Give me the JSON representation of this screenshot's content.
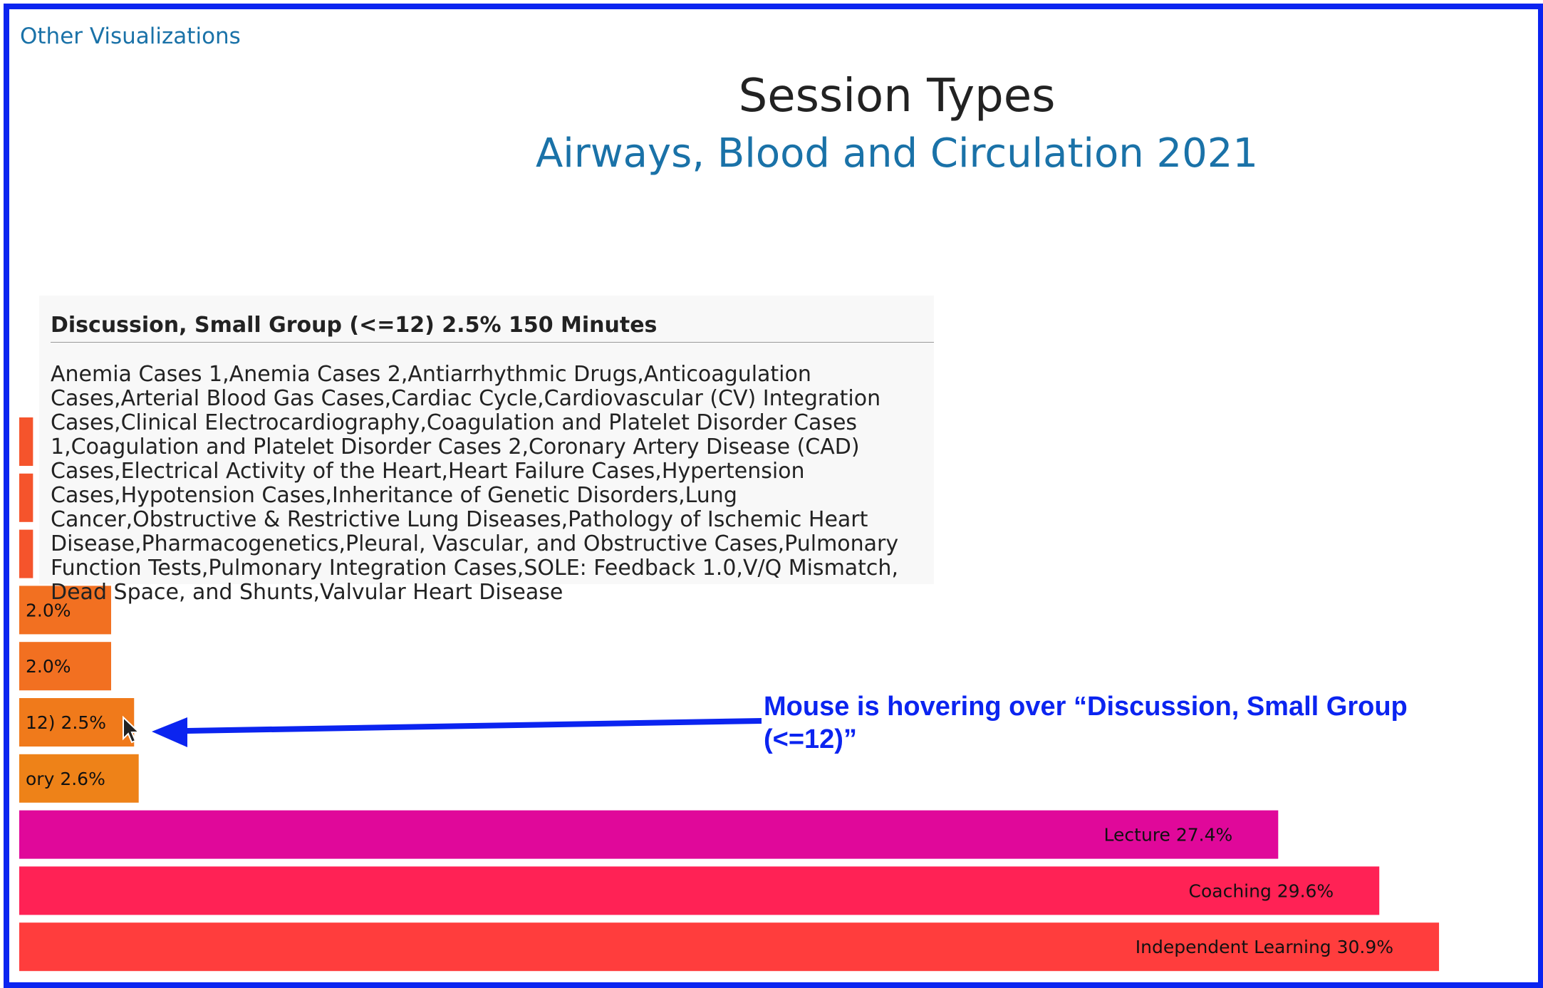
{
  "nav": {
    "link_label": "Other Visualizations"
  },
  "chart_data": {
    "type": "bar",
    "orientation": "horizontal",
    "title": "Session Types",
    "subtitle": "Airways, Blood and Circulation 2021",
    "xlim": [
      0,
      32
    ],
    "bars": [
      {
        "label": "",
        "value": 0.3,
        "color": "#f5542c"
      },
      {
        "label": "",
        "value": 0.3,
        "color": "#f5542c"
      },
      {
        "label": "",
        "value": 0.3,
        "color": "#f5542c"
      },
      {
        "label": "2.0%",
        "value": 2.0,
        "color": "#f27021"
      },
      {
        "label": "2.0%",
        "value": 2.0,
        "color": "#f27021"
      },
      {
        "label": "12) 2.5%",
        "value": 2.5,
        "color": "#f07a1b"
      },
      {
        "label": "ory 2.6%",
        "value": 2.6,
        "color": "#ee8218"
      },
      {
        "label": "Lecture 27.4%",
        "value": 27.4,
        "color": "#e0089a"
      },
      {
        "label": "Coaching 29.6%",
        "value": 29.6,
        "color": "#ff2255"
      },
      {
        "label": "Independent Learning 30.9%",
        "value": 30.9,
        "color": "#ff3d3d"
      }
    ]
  },
  "tooltip": {
    "header": "Discussion, Small Group (<=12) 2.5% 150 Minutes",
    "body": "Anemia Cases 1,Anemia Cases 2,Antiarrhythmic Drugs,Anticoagulation Cases,Arterial Blood Gas Cases,Cardiac Cycle,Cardiovascular (CV) Integration Cases,Clinical Electrocardiography,Coagulation and Platelet Disorder Cases 1,Coagulation and Platelet Disorder Cases 2,Coronary Artery Disease (CAD) Cases,Electrical Activity of the Heart,Heart Failure Cases,Hypertension Cases,Hypotension Cases,Inheritance of Genetic Disorders,Lung Cancer,Obstructive & Restrictive Lung Diseases,Pathology of Ischemic Heart Disease,Pharmacogenetics,Pleural, Vascular, and Obstructive Cases,Pulmonary Function Tests,Pulmonary Integration Cases,SOLE: Feedback 1.0,V/Q Mismatch, Dead Space, and Shunts,Valvular Heart Disease"
  },
  "annotation": {
    "text": "Mouse is hovering over “Discussion, Small Group (<=12)”",
    "color": "#0b24f0"
  }
}
